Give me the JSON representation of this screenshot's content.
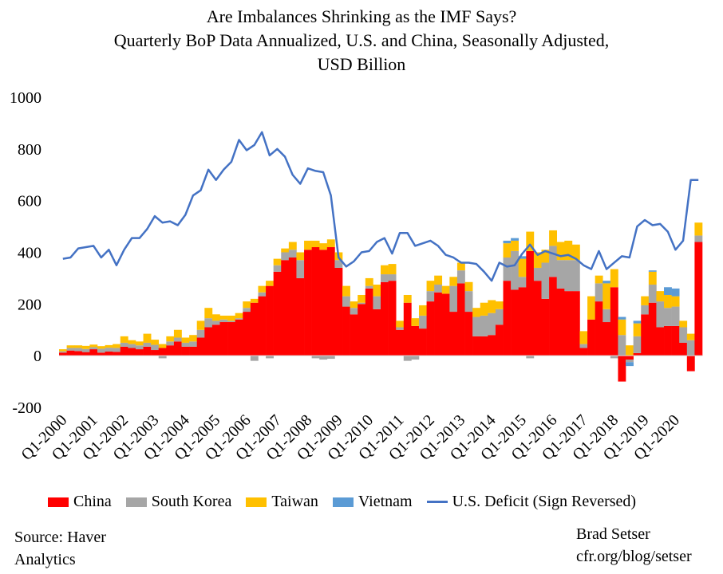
{
  "chart_data": {
    "type": "bar",
    "stacked": true,
    "title_lines": [
      "Are Imbalances Shrinking as the IMF Says?",
      "Quarterly BoP Data Annualized, U.S. and China, Seasonally Adjusted,",
      "USD Billion"
    ],
    "ylim": [
      -200,
      1000
    ],
    "yticks": [
      -200,
      0,
      200,
      400,
      600,
      800,
      1000
    ],
    "xtick_labels": [
      "Q1-2000",
      "Q1-2001",
      "Q1-2002",
      "Q1-2003",
      "Q1-2004",
      "Q1-2005",
      "Q1-2006",
      "Q1-2007",
      "Q1-2008",
      "Q1-2009",
      "Q1-2010",
      "Q1-2011",
      "Q1-2012",
      "Q1-2013",
      "Q1-2014",
      "Q1-2015",
      "Q1-2016",
      "Q1-2017",
      "Q1-2018",
      "Q1-2019",
      "Q1-2020"
    ],
    "grid": false,
    "legend_position": "bottom",
    "series": [
      {
        "name": "China",
        "kind": "bar",
        "color": "#ff0000",
        "values": [
          12,
          20,
          18,
          14,
          25,
          12,
          16,
          15,
          35,
          30,
          25,
          35,
          22,
          30,
          40,
          55,
          35,
          35,
          70,
          110,
          120,
          130,
          130,
          140,
          170,
          205,
          230,
          270,
          325,
          370,
          380,
          300,
          410,
          420,
          410,
          420,
          340,
          190,
          160,
          200,
          260,
          180,
          285,
          290,
          100,
          205,
          115,
          105,
          210,
          245,
          240,
          170,
          280,
          170,
          75,
          75,
          80,
          120,
          290,
          255,
          265,
          405,
          290,
          220,
          305,
          260,
          250,
          250,
          30,
          140,
          210,
          130,
          265,
          -100,
          -15,
          10,
          160,
          205,
          110,
          115,
          115,
          50,
          -60,
          440
        ]
      },
      {
        "name": "South Korea",
        "kind": "bar",
        "color": "#a6a6a6",
        "values": [
          5,
          10,
          12,
          12,
          8,
          15,
          15,
          15,
          15,
          15,
          15,
          15,
          20,
          -10,
          15,
          15,
          15,
          20,
          30,
          35,
          15,
          10,
          5,
          5,
          15,
          -20,
          15,
          -10,
          25,
          30,
          30,
          70,
          0,
          -10,
          -15,
          -12,
          30,
          40,
          25,
          5,
          10,
          50,
          30,
          25,
          10,
          -20,
          -15,
          50,
          40,
          30,
          0,
          100,
          50,
          80,
          75,
          80,
          85,
          60,
          90,
          150,
          40,
          -10,
          50,
          140,
          120,
          110,
          120,
          120,
          15,
          0,
          70,
          50,
          -10,
          80,
          -10,
          65,
          35,
          70,
          100,
          70,
          75,
          60,
          60,
          25
        ]
      },
      {
        "name": "Taiwan",
        "kind": "bar",
        "color": "#ffc000",
        "values": [
          8,
          10,
          10,
          12,
          10,
          10,
          10,
          15,
          25,
          15,
          15,
          35,
          20,
          15,
          20,
          30,
          20,
          25,
          35,
          40,
          25,
          15,
          20,
          20,
          25,
          15,
          25,
          20,
          25,
          15,
          30,
          30,
          35,
          25,
          25,
          30,
          30,
          40,
          25,
          30,
          30,
          45,
          35,
          40,
          25,
          30,
          30,
          40,
          40,
          35,
          30,
          35,
          30,
          35,
          35,
          50,
          50,
          30,
          55,
          40,
          70,
          75,
          60,
          50,
          60,
          70,
          75,
          60,
          50,
          90,
          30,
          100,
          70,
          60,
          40,
          50,
          35,
          50,
          40,
          50,
          40,
          25,
          25,
          50
        ]
      },
      {
        "name": "Vietnam",
        "kind": "bar",
        "color": "#5b9bd5",
        "values": [
          0,
          0,
          0,
          0,
          0,
          0,
          0,
          0,
          0,
          0,
          0,
          0,
          0,
          0,
          0,
          0,
          0,
          0,
          0,
          0,
          0,
          0,
          0,
          0,
          0,
          0,
          0,
          0,
          0,
          0,
          0,
          0,
          0,
          0,
          0,
          0,
          0,
          0,
          0,
          0,
          0,
          0,
          0,
          0,
          0,
          0,
          0,
          0,
          0,
          0,
          0,
          0,
          0,
          0,
          0,
          0,
          0,
          0,
          10,
          10,
          10,
          0,
          0,
          0,
          0,
          0,
          0,
          0,
          0,
          0,
          0,
          10,
          0,
          10,
          -15,
          10,
          0,
          5,
          0,
          30,
          30,
          0,
          0,
          0
        ]
      },
      {
        "name": "U.S. Deficit (Sign Reversed)",
        "kind": "line",
        "color": "#4472c4",
        "values": [
          375,
          380,
          415,
          420,
          425,
          380,
          410,
          350,
          410,
          455,
          455,
          490,
          540,
          515,
          520,
          505,
          545,
          620,
          640,
          720,
          680,
          720,
          750,
          835,
          795,
          815,
          865,
          775,
          800,
          770,
          700,
          665,
          725,
          715,
          710,
          620,
          380,
          345,
          365,
          400,
          405,
          440,
          455,
          395,
          475,
          475,
          425,
          435,
          445,
          425,
          390,
          380,
          360,
          360,
          355,
          325,
          290,
          360,
          345,
          350,
          395,
          430,
          390,
          405,
          395,
          385,
          390,
          375,
          350,
          335,
          405,
          335,
          360,
          385,
          380,
          500,
          525,
          505,
          510,
          480,
          410,
          445,
          680,
          680
        ]
      }
    ]
  },
  "legend": [
    {
      "label": "China",
      "color": "#ff0000",
      "kind": "bar"
    },
    {
      "label": "South Korea",
      "color": "#a6a6a6",
      "kind": "bar"
    },
    {
      "label": "Taiwan",
      "color": "#ffc000",
      "kind": "bar"
    },
    {
      "label": "Vietnam",
      "color": "#5b9bd5",
      "kind": "bar"
    },
    {
      "label": "U.S. Deficit (Sign Reversed)",
      "color": "#4472c4",
      "kind": "line"
    }
  ],
  "source": {
    "line1": "Source: Haver",
    "line2": "Analytics"
  },
  "author": {
    "line1": "Brad Setser",
    "line2": "cfr.org/blog/setser"
  }
}
